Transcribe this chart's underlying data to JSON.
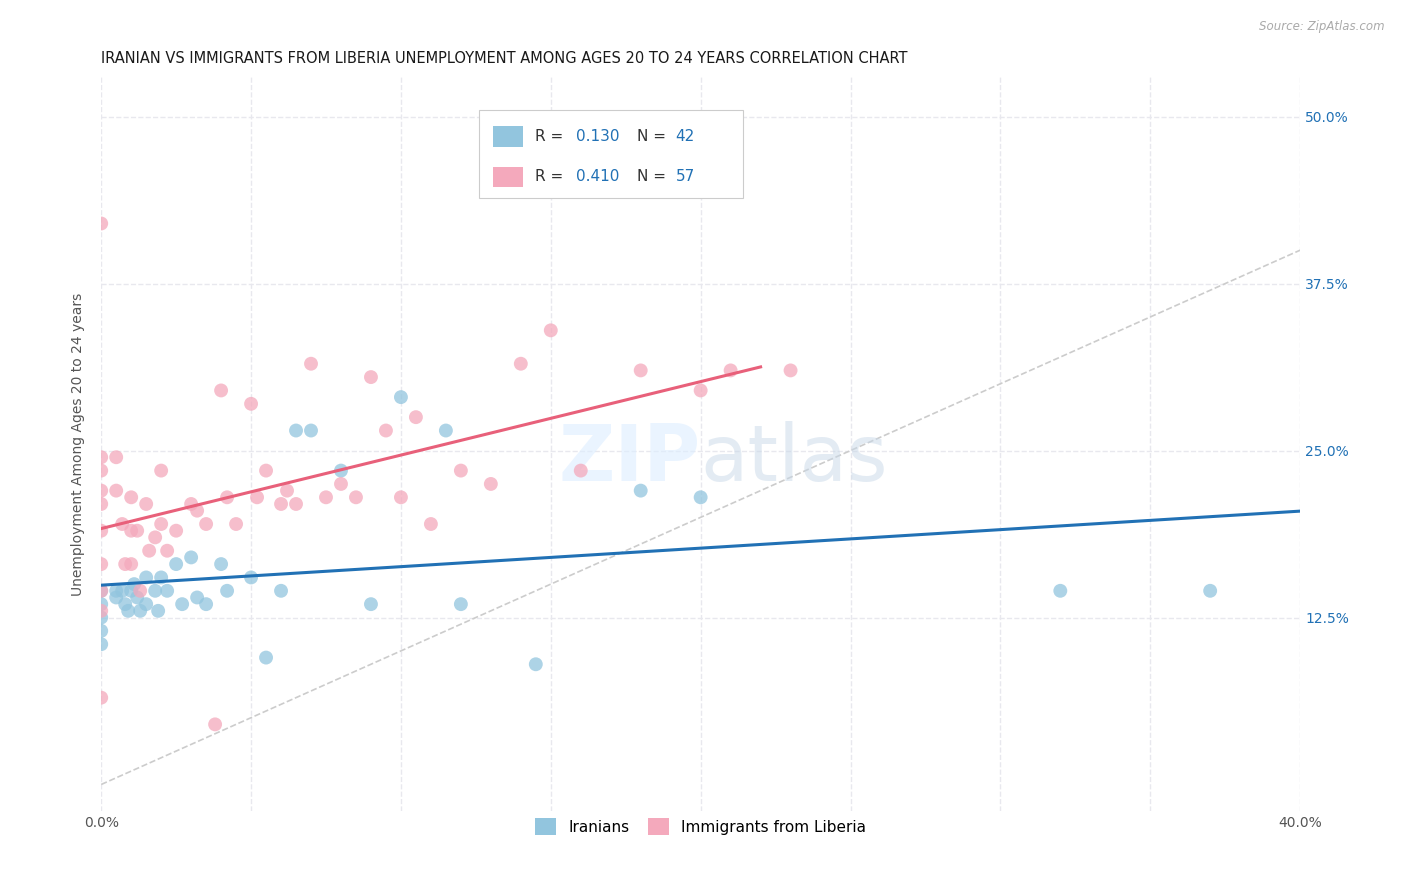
{
  "title": "IRANIAN VS IMMIGRANTS FROM LIBERIA UNEMPLOYMENT AMONG AGES 20 TO 24 YEARS CORRELATION CHART",
  "source": "Source: ZipAtlas.com",
  "ylabel": "Unemployment Among Ages 20 to 24 years",
  "xlim": [
    0.0,
    0.4
  ],
  "ylim": [
    -0.02,
    0.53
  ],
  "xticks": [
    0.0,
    0.05,
    0.1,
    0.15,
    0.2,
    0.25,
    0.3,
    0.35,
    0.4
  ],
  "yticks": [
    0.125,
    0.25,
    0.375,
    0.5
  ],
  "yticklabels": [
    "12.5%",
    "25.0%",
    "37.5%",
    "50.0%"
  ],
  "legend_r1": "R = 0.130",
  "legend_n1": "N = 42",
  "legend_r2": "R = 0.410",
  "legend_n2": "N = 57",
  "blue_color": "#92c5de",
  "pink_color": "#f4a9bc",
  "blue_line_color": "#2171b5",
  "pink_line_color": "#e8607a",
  "ref_line_color": "#cccccc",
  "grid_color": "#e8e8ee",
  "iranians_x": [
    0.0,
    0.0,
    0.0,
    0.0,
    0.0,
    0.005,
    0.005,
    0.007,
    0.008,
    0.009,
    0.01,
    0.011,
    0.012,
    0.013,
    0.015,
    0.015,
    0.018,
    0.019,
    0.02,
    0.022,
    0.025,
    0.027,
    0.03,
    0.032,
    0.035,
    0.04,
    0.042,
    0.05,
    0.055,
    0.06,
    0.065,
    0.07,
    0.08,
    0.09,
    0.1,
    0.115,
    0.12,
    0.145,
    0.18,
    0.2,
    0.32,
    0.37
  ],
  "iranians_y": [
    0.145,
    0.135,
    0.125,
    0.115,
    0.105,
    0.145,
    0.14,
    0.145,
    0.135,
    0.13,
    0.145,
    0.15,
    0.14,
    0.13,
    0.155,
    0.135,
    0.145,
    0.13,
    0.155,
    0.145,
    0.165,
    0.135,
    0.17,
    0.14,
    0.135,
    0.165,
    0.145,
    0.155,
    0.095,
    0.145,
    0.265,
    0.265,
    0.235,
    0.135,
    0.29,
    0.265,
    0.135,
    0.09,
    0.22,
    0.215,
    0.145,
    0.145
  ],
  "liberia_x": [
    0.0,
    0.0,
    0.0,
    0.0,
    0.0,
    0.0,
    0.0,
    0.0,
    0.0,
    0.0,
    0.005,
    0.005,
    0.007,
    0.008,
    0.01,
    0.01,
    0.01,
    0.012,
    0.013,
    0.015,
    0.016,
    0.018,
    0.02,
    0.02,
    0.022,
    0.025,
    0.03,
    0.032,
    0.035,
    0.038,
    0.04,
    0.042,
    0.045,
    0.05,
    0.052,
    0.055,
    0.06,
    0.062,
    0.065,
    0.07,
    0.075,
    0.08,
    0.085,
    0.09,
    0.095,
    0.1,
    0.105,
    0.11,
    0.12,
    0.13,
    0.14,
    0.15,
    0.16,
    0.18,
    0.2,
    0.21,
    0.23
  ],
  "liberia_y": [
    0.42,
    0.245,
    0.235,
    0.22,
    0.21,
    0.19,
    0.165,
    0.145,
    0.13,
    0.065,
    0.245,
    0.22,
    0.195,
    0.165,
    0.215,
    0.19,
    0.165,
    0.19,
    0.145,
    0.21,
    0.175,
    0.185,
    0.235,
    0.195,
    0.175,
    0.19,
    0.21,
    0.205,
    0.195,
    0.045,
    0.295,
    0.215,
    0.195,
    0.285,
    0.215,
    0.235,
    0.21,
    0.22,
    0.21,
    0.315,
    0.215,
    0.225,
    0.215,
    0.305,
    0.265,
    0.215,
    0.275,
    0.195,
    0.235,
    0.225,
    0.315,
    0.34,
    0.235,
    0.31,
    0.295,
    0.31,
    0.31
  ],
  "background_color": "#ffffff",
  "title_fontsize": 10.5,
  "axis_label_fontsize": 10,
  "tick_fontsize": 10
}
